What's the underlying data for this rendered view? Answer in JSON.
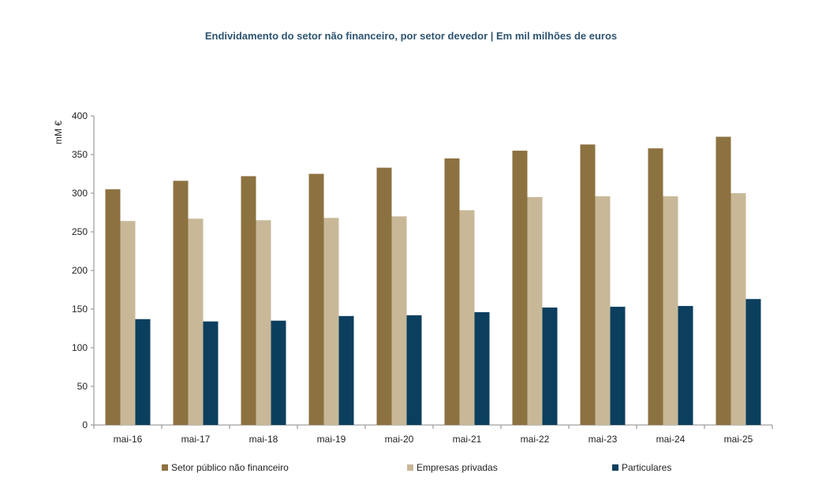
{
  "chart_data": {
    "type": "bar",
    "title": "Endividamento do setor não financeiro, por setor devedor | Em mil milhões de euros",
    "ylabel": "mM €",
    "xlabel": "",
    "ylim": [
      0,
      400
    ],
    "yticks": [
      0,
      50,
      100,
      150,
      200,
      250,
      300,
      350,
      400
    ],
    "grid": false,
    "legend_position": "bottom",
    "categories": [
      "mai-16",
      "mai-17",
      "mai-18",
      "mai-19",
      "mai-20",
      "mai-21",
      "mai-22",
      "mai-23",
      "mai-24",
      "mai-25"
    ],
    "series": [
      {
        "name": "Setor público não financeiro",
        "color": "#8c7240",
        "values": [
          305,
          316,
          322,
          325,
          333,
          345,
          355,
          363,
          358,
          373
        ]
      },
      {
        "name": "Empresas privadas",
        "color": "#c8b898",
        "values": [
          264,
          267,
          265,
          268,
          270,
          278,
          295,
          296,
          296,
          300
        ]
      },
      {
        "name": "Particulares",
        "color": "#0c3f5e",
        "values": [
          137,
          134,
          135,
          141,
          142,
          146,
          152,
          153,
          154,
          163
        ]
      }
    ]
  }
}
